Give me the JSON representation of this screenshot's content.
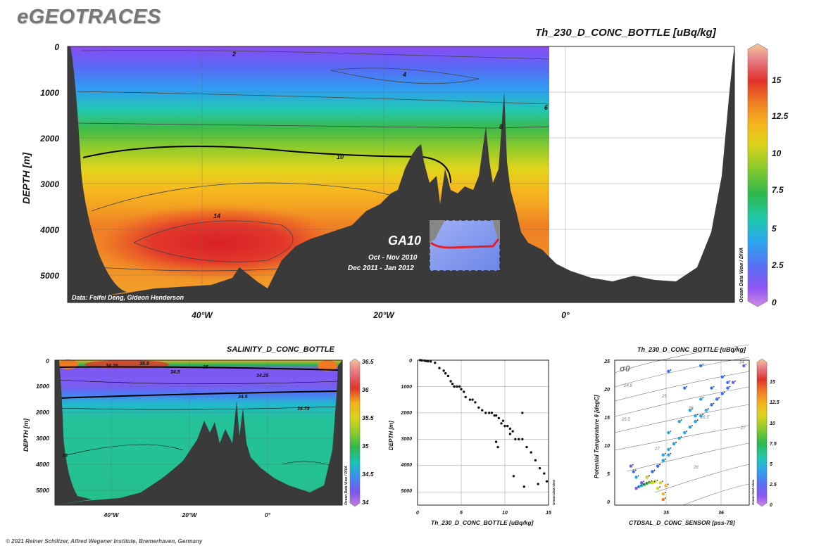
{
  "header": {
    "logo": "eGEOTRACES",
    "footer": "© 2021 Reiner Schlitzer, Alfred Wegener Institute, Bremerhaven, Germany"
  },
  "colors": {
    "scale": [
      "#c77dd9",
      "#7a55f0",
      "#3d6df0",
      "#1fa6e8",
      "#19c3b8",
      "#2db84a",
      "#8ccb2a",
      "#d9d21a",
      "#f5b21e",
      "#f07a22",
      "#e0342a",
      "#e6707a",
      "#f5c49a"
    ],
    "bathymetry": "#3a3a3a",
    "dots": "#111111"
  },
  "chart_data": [
    {
      "type": "heatmap",
      "title": "Th_230_D_CONC_BOTTLE [uBq/kg]",
      "ylabel": "DEPTH [m]",
      "xticks": [
        "40°W",
        "20°W",
        "0°"
      ],
      "yticks": [
        "0",
        "1000",
        "2000",
        "3000",
        "4000",
        "5000"
      ],
      "ylim": [
        0,
        5500
      ],
      "colorbar": {
        "ticks": [
          "0",
          "2.5",
          "5",
          "7.5",
          "10",
          "12.5",
          "15"
        ],
        "range": [
          0,
          18
        ],
        "label": "Ocean Data View / DIVA"
      },
      "contour_labels": [
        "2",
        "4",
        "6",
        "8",
        "10",
        "14"
      ],
      "credit": "Data: Feifei Deng, Gideon Henderson",
      "inset": {
        "section": "GA10",
        "dates": [
          "Oct - Nov 2010",
          "Dec 2011 - Jan 2012"
        ]
      }
    },
    {
      "type": "heatmap",
      "title": "SALINITY_D_CONC_BOTTLE",
      "ylabel": "DEPTH [m]",
      "xticks": [
        "40°W",
        "20°W",
        "0°"
      ],
      "yticks": [
        "0",
        "1000",
        "2000",
        "3000",
        "4000",
        "5000"
      ],
      "ylim": [
        0,
        5500
      ],
      "colorbar": {
        "ticks": [
          "34",
          "34.5",
          "35",
          "35.5",
          "36",
          "36.5"
        ],
        "range": [
          34,
          36.6
        ],
        "label": "Ocean Data View / DIVA"
      },
      "contour_labels": [
        "35.5",
        "34.75",
        "35",
        "34.5",
        "34.25",
        "34.5",
        "34.75",
        "35"
      ]
    },
    {
      "type": "scatter",
      "xlabel": "Th_230_D_CONC_BOTTLE [uBq/kg]",
      "ylabel": "DEPTH [m]",
      "xticks": [
        "0",
        "5",
        "10",
        "15"
      ],
      "yticks": [
        "0",
        "1000",
        "2000",
        "3000",
        "4000",
        "5000"
      ],
      "xlim": [
        0,
        15
      ],
      "ylim": [
        0,
        5500
      ],
      "side_label": "Ocean Data View",
      "x": [
        0.3,
        0.5,
        0.8,
        1.0,
        1.2,
        1.5,
        2.0,
        2.5,
        3.0,
        3.2,
        3.5,
        3.8,
        4.0,
        4.2,
        4.5,
        4.8,
        5.0,
        5.3,
        5.5,
        6.0,
        6.3,
        6.6,
        7.0,
        7.4,
        7.8,
        8.2,
        8.5,
        8.8,
        9.0,
        9.3,
        9.6,
        10.0,
        10.3,
        10.6,
        10.9,
        11.2,
        11.6,
        12.0,
        12.5,
        13.0,
        13.5,
        14.0,
        14.5,
        9.0,
        9.2,
        11.0,
        12.2,
        13.8,
        14.8,
        12.0,
        9.8,
        10.6
      ],
      "y": [
        0,
        10,
        20,
        30,
        40,
        50,
        100,
        300,
        400,
        500,
        600,
        800,
        900,
        1000,
        1000,
        1000,
        1100,
        1200,
        1400,
        1500,
        1500,
        1600,
        1800,
        1900,
        2000,
        2000,
        2000,
        2100,
        2100,
        2200,
        2400,
        2500,
        2500,
        2600,
        2700,
        3000,
        3000,
        3000,
        3300,
        3500,
        3800,
        4100,
        4300,
        3100,
        3300,
        4400,
        4800,
        4700,
        4600,
        2000,
        2300,
        2800
      ],
      "point_labels": []
    },
    {
      "type": "scatter",
      "title": "Th_230_D_CONC_BOTTLE [uBq/kg]",
      "xlabel": "CTDSAL_D_CONC_SENSOR [pss-78]",
      "ylabel": "Potential Temperature θ [degC]",
      "xticks": [
        "35",
        "36"
      ],
      "yticks": [
        "0",
        "5",
        "10",
        "15",
        "20",
        "25"
      ],
      "xlim": [
        34.0,
        36.5
      ],
      "ylim": [
        -1,
        25
      ],
      "sigma_label": "σ0",
      "isopycnal_labels": [
        "24",
        "24.5",
        "25",
        "25.5",
        "26",
        "26.5",
        "27",
        "27",
        "28"
      ],
      "colorbar": {
        "ticks": [
          "0",
          "2.5",
          "5",
          "7.5",
          "10",
          "12.5",
          "15"
        ],
        "range": [
          0,
          18
        ],
        "label": "Ocean Data View"
      },
      "x": [
        34.9,
        35.0,
        35.1,
        35.2,
        35.3,
        35.4,
        35.5,
        35.6,
        35.7,
        35.8,
        35.9,
        36.0,
        36.1,
        36.2,
        35.0,
        35.2,
        35.4,
        35.6,
        35.8,
        36.0,
        35.1,
        35.3,
        35.5,
        35.7,
        35.9,
        34.5,
        34.6,
        34.7,
        34.8,
        34.9,
        34.4,
        34.5,
        34.6,
        34.7,
        34.8,
        34.9,
        35.0,
        34.9,
        34.8,
        34.7,
        34.6,
        34.9,
        34.95,
        34.85,
        34.75,
        34.65,
        34.6,
        34.55,
        34.5,
        34.45,
        34.4,
        34.35,
        34.3,
        35.3,
        35.6,
        36.4,
        36.1,
        35.5,
        35.0
      ],
      "y": [
        8,
        9,
        10,
        11,
        12,
        13,
        14,
        15,
        16,
        17,
        18,
        19,
        20,
        21,
        12,
        14,
        16,
        18,
        20,
        22,
        10,
        12,
        14,
        16,
        18,
        3,
        4,
        5,
        6,
        7,
        2,
        3,
        4,
        5,
        6,
        7,
        8,
        1,
        2,
        3,
        4,
        0,
        2.5,
        3.0,
        3.2,
        3.1,
        2.9,
        2.7,
        2.5,
        2.3,
        4,
        5,
        6,
        20,
        24,
        24,
        21,
        15,
        23
      ],
      "z": [
        5,
        5,
        5,
        5,
        5,
        4,
        4,
        4,
        4,
        3,
        3,
        3,
        3,
        2,
        5,
        5,
        4,
        4,
        3,
        3,
        5,
        5,
        4,
        4,
        3,
        2,
        2,
        3,
        3,
        4,
        1,
        1,
        2,
        3,
        3,
        4,
        4,
        12,
        11,
        10,
        10,
        13,
        12,
        11,
        10,
        9,
        8,
        7,
        6,
        5,
        4,
        3,
        2,
        3,
        3,
        2,
        3,
        4,
        3
      ]
    }
  ]
}
